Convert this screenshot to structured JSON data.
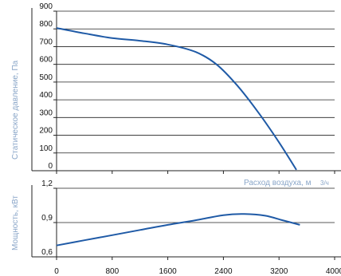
{
  "chart_data": [
    {
      "type": "line",
      "title": "",
      "ylabel": "Статическое давление, Па",
      "xlabel": "Расход воздуха, м",
      "xlabel_unit": "3/ч",
      "ylim": [
        0,
        900
      ],
      "xlim": [
        0,
        4000
      ],
      "yticks": [
        "0",
        "100",
        "200",
        "300",
        "400",
        "500",
        "600",
        "700",
        "800",
        "900"
      ],
      "grid": "horizontal",
      "series": [
        {
          "color": "#1f5aa6",
          "x": [
            0,
            400,
            800,
            1200,
            1600,
            2000,
            2300,
            2600,
            2900,
            3200,
            3450
          ],
          "y": [
            805,
            775,
            748,
            733,
            712,
            670,
            600,
            480,
            330,
            160,
            5
          ]
        }
      ]
    },
    {
      "type": "line",
      "title": "",
      "ylabel": "Мощность, кВт",
      "xlabel": "",
      "ylim": [
        0.6,
        1.2
      ],
      "xlim": [
        0,
        4000
      ],
      "yticks": [
        "0,6",
        "0,9",
        "1,2"
      ],
      "xticks": [
        "0",
        "800",
        "1600",
        "2400",
        "3200",
        "4000"
      ],
      "grid": "horizontal",
      "series": [
        {
          "color": "#1f5aa6",
          "x": [
            0,
            400,
            800,
            1200,
            1600,
            2000,
            2400,
            2700,
            3000,
            3250,
            3500
          ],
          "y": [
            0.7,
            0.745,
            0.79,
            0.835,
            0.88,
            0.92,
            0.965,
            0.975,
            0.96,
            0.92,
            0.88
          ]
        }
      ]
    }
  ]
}
